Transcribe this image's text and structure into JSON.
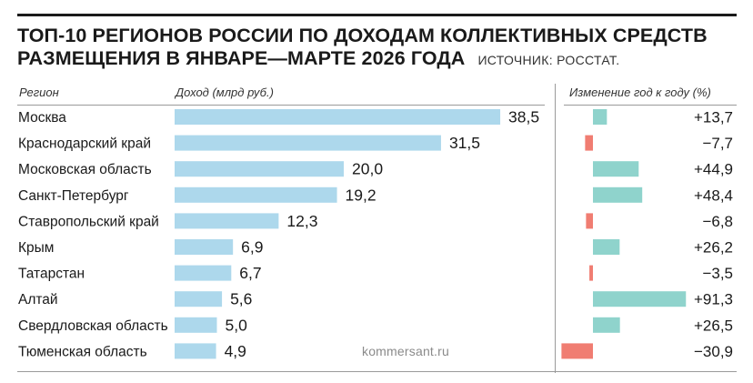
{
  "title_line1": "ТОП-10 РЕГИОНОВ РОССИИ ПО ДОХОДАМ КОЛЛЕКТИВНЫХ СРЕДСТВ",
  "title_line2": "РАЗМЕЩЕНИЯ В ЯНВАРЕ—МАРТЕ 2026 ГОДА",
  "source": "ИСТОЧНИК: РОССТАТ.",
  "watermark": "kommersant.ru",
  "colors": {
    "income_bar": "#add8ec",
    "change_positive": "#8fd3cc",
    "change_negative": "#f07d72",
    "text": "#1a1a1a"
  },
  "chart_data": {
    "type": "bar",
    "orientation": "horizontal",
    "column_headers": {
      "region": "Регион",
      "income": "Доход (млрд руб.)",
      "change": "Изменение год к году (%)"
    },
    "categories": [
      "Москва",
      "Краснодарский край",
      "Московская область",
      "Санкт-Петербург",
      "Ставропольский край",
      "Крым",
      "Татарстан",
      "Алтай",
      "Свердловская область",
      "Тюменская область"
    ],
    "series": [
      {
        "key": "income",
        "values": [
          38.5,
          31.5,
          20.0,
          19.2,
          12.3,
          6.9,
          6.7,
          5.6,
          5.0,
          4.9
        ],
        "labels": [
          "38,5",
          "31,5",
          "20,0",
          "19,2",
          "12,3",
          "6,9",
          "6,7",
          "5,6",
          "5,0",
          "4,9"
        ]
      },
      {
        "key": "change",
        "values": [
          13.7,
          -7.7,
          44.9,
          48.4,
          -6.8,
          26.2,
          -3.5,
          91.3,
          26.5,
          -30.9
        ],
        "labels": [
          "+13,7",
          "−7,7",
          "+44,9",
          "+48,4",
          "−6,8",
          "+26,2",
          "−3,5",
          "+91,3",
          "+26,5",
          "−30,9"
        ]
      }
    ]
  }
}
